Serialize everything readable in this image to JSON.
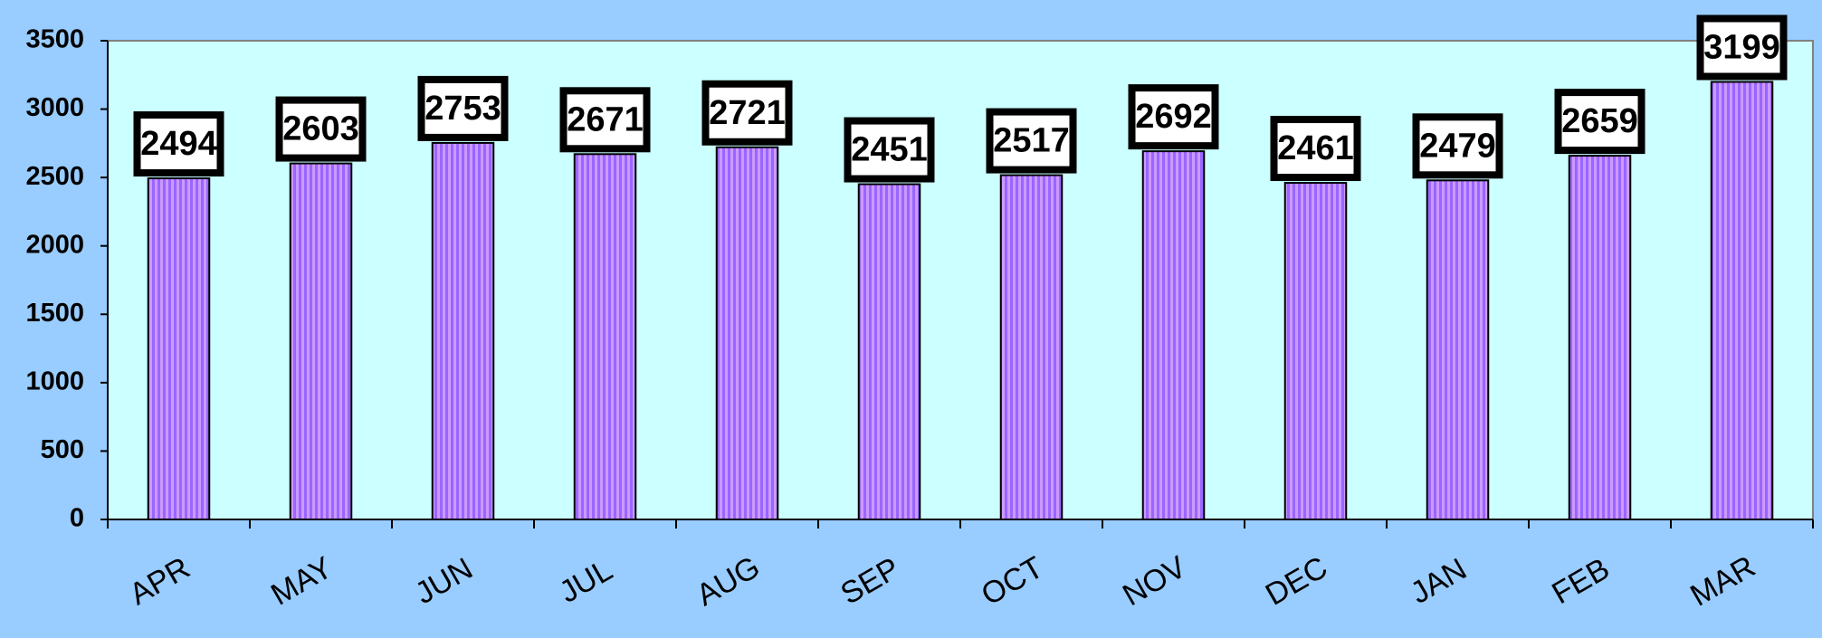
{
  "chart_data": {
    "type": "bar",
    "categories": [
      "APR",
      "MAY",
      "JUN",
      "JUL",
      "AUG",
      "SEP",
      "OCT",
      "NOV",
      "DEC",
      "JAN",
      "FEB",
      "MAR"
    ],
    "values": [
      2494,
      2603,
      2753,
      2671,
      2721,
      2451,
      2517,
      2692,
      2461,
      2479,
      2659,
      3199
    ],
    "color": "#9966ff",
    "ylim": [
      0,
      3500
    ],
    "yticks": [
      0,
      500,
      1000,
      1500,
      2000,
      2500,
      3000,
      3500
    ],
    "grid": false
  }
}
